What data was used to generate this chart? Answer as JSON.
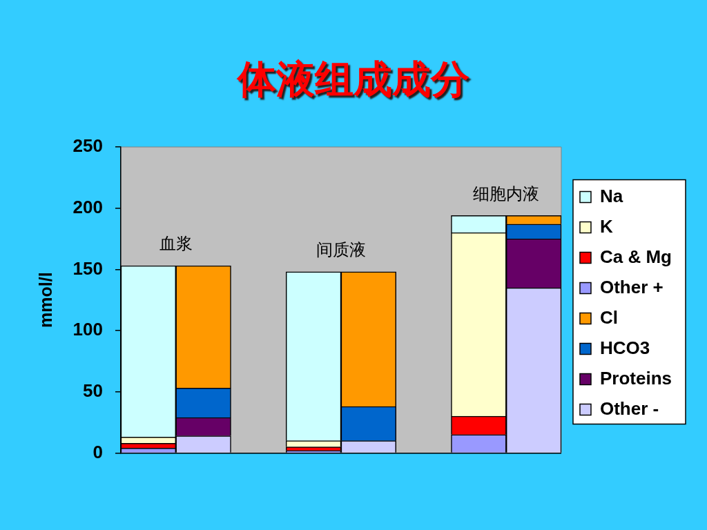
{
  "chart_data": {
    "type": "bar",
    "title": "体液组成成分",
    "ylabel": "mmol/l",
    "categories": [
      null,
      null,
      null,
      null,
      null,
      null,
      null,
      null
    ],
    "stacked": true,
    "series": [
      {
        "name": "Other -",
        "color": "#ccccff",
        "values": [
          null,
          14,
          null,
          null,
          10,
          null,
          null,
          135
        ]
      },
      {
        "name": "Proteins",
        "color": "#660066",
        "values": [
          null,
          15,
          null,
          null,
          null,
          null,
          null,
          40
        ]
      },
      {
        "name": "HCO3",
        "color": "#0066cc",
        "values": [
          null,
          24,
          null,
          null,
          28,
          null,
          null,
          12
        ]
      },
      {
        "name": "Cl",
        "color": "#ff9900",
        "values": [
          null,
          100,
          null,
          null,
          110,
          null,
          null,
          7
        ]
      },
      {
        "name": "Other +",
        "color": "#9999ff",
        "values": [
          4,
          null,
          null,
          2,
          null,
          null,
          15,
          null
        ]
      },
      {
        "name": "Ca & Mg",
        "color": "#ff0000",
        "values": [
          4,
          null,
          null,
          3,
          null,
          null,
          15,
          null
        ]
      },
      {
        "name": "K",
        "color": "#ffffcc",
        "values": [
          5,
          null,
          null,
          5,
          null,
          null,
          150,
          null
        ]
      },
      {
        "name": "Na",
        "color": "#ccffff",
        "values": [
          140,
          null,
          null,
          138,
          null,
          null,
          14,
          null
        ]
      }
    ],
    "ylim": [
      0,
      250
    ],
    "yticks": [
      0,
      50,
      100,
      150,
      200,
      250
    ],
    "legend": "right",
    "annotations": [
      "血浆",
      "间质液",
      "细胞内液"
    ]
  }
}
